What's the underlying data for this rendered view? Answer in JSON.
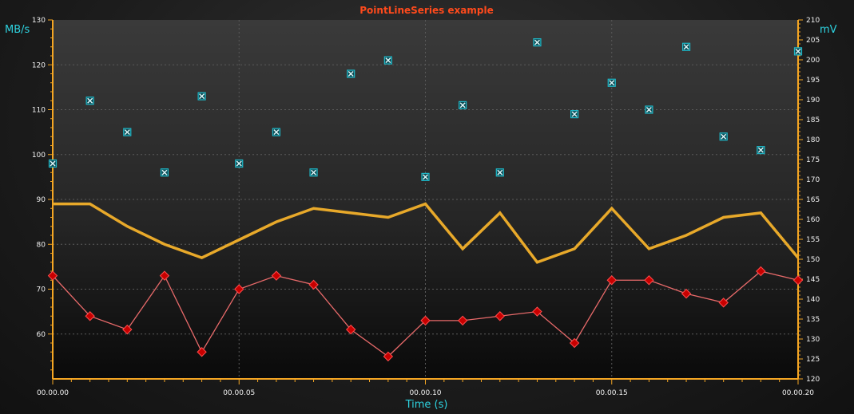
{
  "chart_data": {
    "type": "line",
    "title": "PointLineSeries example",
    "xlabel": "Time (s)",
    "ylabel_left": "MB/s",
    "ylabel_right": "mV",
    "x_tick_labels": [
      "00.00.00",
      "00.00.05",
      "00.00.10",
      "00.00.15",
      "00.00.20"
    ],
    "x_ticks": [
      0,
      0.05,
      0.1,
      0.15,
      0.2
    ],
    "xlim": [
      0,
      0.2
    ],
    "ylim_left": [
      50,
      130
    ],
    "ylim_right": [
      120,
      210
    ],
    "y_left_ticks": [
      60,
      70,
      80,
      90,
      100,
      110,
      120,
      130
    ],
    "y_right_ticks": [
      120,
      125,
      130,
      135,
      140,
      145,
      150,
      155,
      160,
      165,
      170,
      175,
      180,
      185,
      190,
      195,
      200,
      205,
      210
    ],
    "grid": true,
    "colors": {
      "axis": "#f5a623",
      "title": "#ff4a1c",
      "axis_title": "#2ed3e0",
      "scatter": "#1fb8c8",
      "yellow_line": "#e8a92a",
      "red_line": "#e86a6a",
      "red_marker": "#c80000"
    },
    "series": [
      {
        "style": "scatter",
        "axis": "left",
        "marker": "x-square",
        "x": [
          0,
          0.01,
          0.02,
          0.03,
          0.04,
          0.05,
          0.06,
          0.07,
          0.08,
          0.09,
          0.1,
          0.11,
          0.12,
          0.13,
          0.14,
          0.15,
          0.16,
          0.17,
          0.18,
          0.19,
          0.2
        ],
        "values": [
          98,
          112,
          105,
          96,
          113,
          98,
          105,
          96,
          118,
          121,
          95,
          111,
          96,
          125,
          109,
          116,
          110,
          124,
          104,
          101,
          123
        ]
      },
      {
        "style": "line",
        "axis": "left",
        "x": [
          0,
          0.01,
          0.02,
          0.03,
          0.04,
          0.05,
          0.06,
          0.07,
          0.08,
          0.09,
          0.1,
          0.11,
          0.12,
          0.13,
          0.14,
          0.15,
          0.16,
          0.17,
          0.18,
          0.19,
          0.2
        ],
        "values": [
          89,
          89,
          84,
          80,
          77,
          81,
          85,
          88,
          87,
          86,
          89,
          79,
          87,
          76,
          79,
          88,
          79,
          82,
          86,
          87,
          77
        ]
      },
      {
        "style": "point-line",
        "axis": "left",
        "marker": "diamond",
        "x": [
          0,
          0.01,
          0.02,
          0.03,
          0.04,
          0.05,
          0.06,
          0.07,
          0.08,
          0.09,
          0.1,
          0.11,
          0.12,
          0.13,
          0.14,
          0.15,
          0.16,
          0.17,
          0.18,
          0.19,
          0.2
        ],
        "values": [
          73,
          64,
          61,
          73,
          56,
          70,
          73,
          71,
          61,
          55,
          63,
          63,
          64,
          65,
          58,
          72,
          72,
          69,
          67,
          74,
          72
        ]
      }
    ]
  }
}
